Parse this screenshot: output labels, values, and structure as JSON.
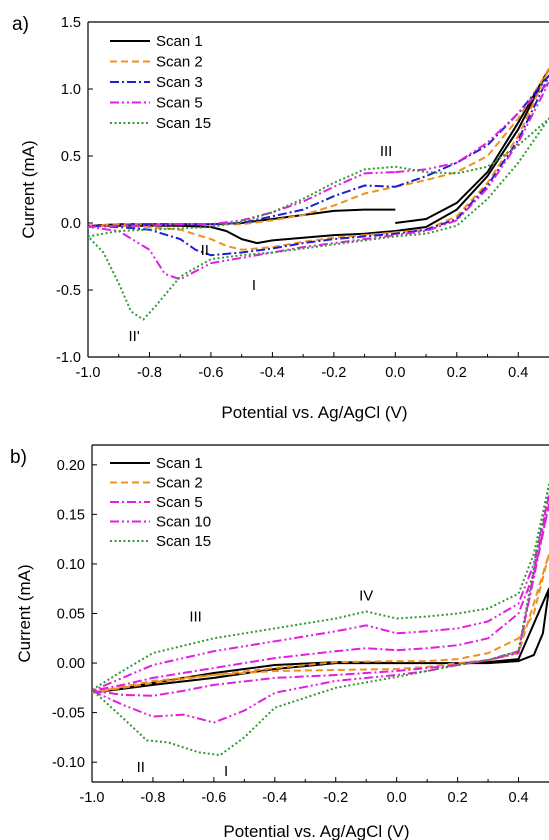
{
  "colors": {
    "scan1": "#000000",
    "scan2": "#f0901e",
    "scan3": "#1e1ed2",
    "scan5": "#e21ee2",
    "scan10": "#e21ee2",
    "scan15": "#2f9a2f"
  },
  "chart_data": [
    {
      "type": "line",
      "panel_label": "a)",
      "xlabel": "Potential vs. Ag/AgCl (V)",
      "ylabel": "Current (mA)",
      "xlim": [
        -1.0,
        0.5
      ],
      "ylim": [
        -1.0,
        1.5
      ],
      "xticks": [
        -1.0,
        -0.8,
        -0.6,
        -0.4,
        -0.2,
        0.0,
        0.2,
        0.4
      ],
      "xtick_labels": [
        "-1.0",
        "-0.8",
        "-0.6",
        "-0.4",
        "-0.2",
        "0.0",
        "0.2",
        "0.4"
      ],
      "yticks": [
        -1.0,
        -0.5,
        0.0,
        0.5,
        1.0,
        1.5
      ],
      "ytick_labels": [
        "-1.0",
        "-0.5",
        "0.0",
        "0.5",
        "1.0",
        "1.5"
      ],
      "grid": false,
      "legend": "top-left",
      "series": [
        {
          "name": "Scan 1",
          "color_key": "scan1",
          "dash": "solid",
          "x": [
            0.0,
            0.1,
            0.2,
            0.3,
            0.4,
            0.5,
            0.4,
            0.3,
            0.2,
            0.1,
            0.0,
            -0.1,
            -0.2,
            -0.3,
            -0.4,
            -0.45,
            -0.5,
            -0.55,
            -0.6,
            -0.7,
            -0.8,
            -0.9,
            -1.0,
            -0.9,
            -0.8,
            -0.7,
            -0.6,
            -0.5,
            -0.4,
            -0.3,
            -0.2,
            -0.1,
            0.0
          ],
          "y": [
            0.0,
            0.03,
            0.15,
            0.38,
            0.75,
            1.15,
            0.7,
            0.35,
            0.1,
            -0.03,
            -0.06,
            -0.08,
            -0.09,
            -0.11,
            -0.13,
            -0.15,
            -0.12,
            -0.06,
            -0.03,
            -0.02,
            -0.02,
            -0.02,
            -0.02,
            -0.01,
            -0.01,
            -0.01,
            -0.01,
            0.0,
            0.03,
            0.06,
            0.09,
            0.1,
            0.1
          ]
        },
        {
          "name": "Scan 2",
          "color_key": "scan2",
          "dash": "dash",
          "x": [
            0.0,
            0.1,
            0.2,
            0.3,
            0.4,
            0.5,
            0.4,
            0.3,
            0.2,
            0.1,
            0.0,
            -0.1,
            -0.2,
            -0.3,
            -0.4,
            -0.5,
            -0.55,
            -0.6,
            -0.7,
            -0.8,
            -0.9,
            -1.0,
            -0.9,
            -0.8,
            -0.7,
            -0.6,
            -0.5,
            -0.4,
            -0.3,
            -0.2,
            -0.1,
            0.0
          ],
          "y": [
            0.27,
            0.32,
            0.38,
            0.5,
            0.78,
            1.15,
            0.65,
            0.3,
            0.05,
            -0.05,
            -0.07,
            -0.09,
            -0.11,
            -0.14,
            -0.18,
            -0.2,
            -0.17,
            -0.12,
            -0.05,
            -0.03,
            -0.02,
            -0.02,
            -0.01,
            -0.01,
            -0.01,
            -0.01,
            -0.01,
            0.02,
            0.06,
            0.13,
            0.22,
            0.27
          ]
        },
        {
          "name": "Scan 3",
          "color_key": "scan3",
          "dash": "dashdot",
          "x": [
            0.0,
            0.1,
            0.2,
            0.3,
            0.4,
            0.5,
            0.4,
            0.3,
            0.2,
            0.1,
            0.0,
            -0.1,
            -0.2,
            -0.3,
            -0.4,
            -0.5,
            -0.6,
            -0.65,
            -0.7,
            -0.8,
            -0.9,
            -1.0,
            -0.9,
            -0.8,
            -0.7,
            -0.6,
            -0.5,
            -0.4,
            -0.3,
            -0.2,
            -0.1,
            0.0
          ],
          "y": [
            0.27,
            0.35,
            0.45,
            0.58,
            0.82,
            1.1,
            0.62,
            0.28,
            0.03,
            -0.05,
            -0.08,
            -0.1,
            -0.12,
            -0.15,
            -0.19,
            -0.22,
            -0.24,
            -0.2,
            -0.12,
            -0.05,
            -0.03,
            -0.02,
            -0.02,
            -0.01,
            -0.01,
            -0.01,
            0.0,
            0.05,
            0.1,
            0.2,
            0.28,
            0.27
          ]
        },
        {
          "name": "Scan 5",
          "color_key": "scan5",
          "dash": "dashdotdot",
          "x": [
            0.0,
            0.1,
            0.2,
            0.3,
            0.4,
            0.5,
            0.4,
            0.3,
            0.2,
            0.1,
            0.0,
            -0.1,
            -0.2,
            -0.3,
            -0.4,
            -0.5,
            -0.6,
            -0.7,
            -0.75,
            -0.8,
            -0.9,
            -1.0,
            -0.9,
            -0.8,
            -0.7,
            -0.6,
            -0.5,
            -0.4,
            -0.3,
            -0.2,
            -0.1,
            0.0
          ],
          "y": [
            0.38,
            0.4,
            0.45,
            0.6,
            0.82,
            1.05,
            0.6,
            0.26,
            0.02,
            -0.06,
            -0.09,
            -0.12,
            -0.15,
            -0.18,
            -0.22,
            -0.26,
            -0.3,
            -0.42,
            -0.38,
            -0.2,
            -0.06,
            -0.03,
            -0.02,
            -0.02,
            -0.01,
            -0.01,
            0.02,
            0.08,
            0.16,
            0.27,
            0.37,
            0.38
          ]
        },
        {
          "name": "Scan 15",
          "color_key": "scan15",
          "dash": "dot",
          "x": [
            0.0,
            0.1,
            0.2,
            0.3,
            0.4,
            0.5,
            0.4,
            0.3,
            0.2,
            0.1,
            0.0,
            -0.1,
            -0.2,
            -0.3,
            -0.4,
            -0.5,
            -0.6,
            -0.7,
            -0.78,
            -0.82,
            -0.86,
            -0.9,
            -0.95,
            -1.0,
            -0.9,
            -0.8,
            -0.7,
            -0.6,
            -0.5,
            -0.4,
            -0.3,
            -0.2,
            -0.1,
            0.0
          ],
          "y": [
            0.42,
            0.38,
            0.37,
            0.42,
            0.58,
            0.78,
            0.45,
            0.18,
            -0.02,
            -0.08,
            -0.1,
            -0.13,
            -0.16,
            -0.19,
            -0.22,
            -0.24,
            -0.27,
            -0.4,
            -0.62,
            -0.72,
            -0.66,
            -0.45,
            -0.22,
            -0.1,
            -0.06,
            -0.05,
            -0.04,
            -0.03,
            0.01,
            0.08,
            0.18,
            0.3,
            0.4,
            0.42
          ]
        }
      ],
      "annotations": [
        {
          "text": "III",
          "x": -0.03,
          "y": 0.5
        },
        {
          "text": "II",
          "x": -0.62,
          "y": -0.24
        },
        {
          "text": "I",
          "x": -0.46,
          "y": -0.5
        },
        {
          "text": "II'",
          "x": -0.85,
          "y": -0.88
        }
      ]
    },
    {
      "type": "line",
      "panel_label": "b)",
      "xlabel": "Potential vs. Ag/AgCl (V)",
      "ylabel": "Current (mA)",
      "xlim": [
        -1.0,
        0.5
      ],
      "ylim": [
        -0.12,
        0.22
      ],
      "xticks": [
        -1.0,
        -0.8,
        -0.6,
        -0.4,
        -0.2,
        0.0,
        0.2,
        0.4
      ],
      "xtick_labels": [
        "-1.0",
        "-0.8",
        "-0.6",
        "-0.4",
        "-0.2",
        "0.0",
        "0.2",
        "0.4"
      ],
      "yticks": [
        -0.1,
        -0.05,
        0.0,
        0.05,
        0.1,
        0.15,
        0.2
      ],
      "ytick_labels": [
        "-0.10",
        "-0.05",
        "0.00",
        "0.05",
        "0.10",
        "0.15",
        "0.20"
      ],
      "grid": false,
      "legend": "top-left",
      "series": [
        {
          "name": "Scan 1",
          "color_key": "scan1",
          "dash": "solid",
          "x": [
            0.0,
            0.1,
            0.2,
            0.3,
            0.4,
            0.45,
            0.48,
            0.5,
            0.4,
            0.3,
            0.2,
            0.1,
            0.0,
            -0.2,
            -0.4,
            -0.6,
            -0.8,
            -1.0,
            -0.8,
            -0.6,
            -0.4,
            -0.2,
            0.0
          ],
          "y": [
            0.0,
            0.0,
            0.0,
            0.0,
            0.002,
            0.008,
            0.03,
            0.075,
            0.004,
            0.001,
            0.0,
            0.0,
            0.0,
            0.001,
            -0.002,
            -0.01,
            -0.02,
            -0.03,
            -0.022,
            -0.015,
            -0.006,
            0.0,
            0.0
          ]
        },
        {
          "name": "Scan 2",
          "color_key": "scan2",
          "dash": "dash",
          "x": [
            0.0,
            0.1,
            0.2,
            0.3,
            0.4,
            0.45,
            0.5,
            0.4,
            0.3,
            0.2,
            0.1,
            0.0,
            -0.2,
            -0.4,
            -0.6,
            -0.8,
            -1.0,
            -0.8,
            -0.6,
            -0.4,
            -0.2,
            0.0
          ],
          "y": [
            0.002,
            0.002,
            0.004,
            0.01,
            0.025,
            0.05,
            0.11,
            0.01,
            0.003,
            0.0,
            -0.004,
            -0.006,
            -0.007,
            -0.008,
            -0.012,
            -0.018,
            -0.03,
            -0.02,
            -0.012,
            -0.005,
            0.001,
            0.002
          ]
        },
        {
          "name": "Scan 5",
          "color_key": "scan5",
          "dash": "dashdot",
          "x": [
            0.0,
            0.1,
            0.2,
            0.3,
            0.4,
            0.45,
            0.5,
            0.4,
            0.3,
            0.2,
            0.1,
            0.0,
            -0.2,
            -0.4,
            -0.6,
            -0.7,
            -0.8,
            -0.9,
            -1.0,
            -0.9,
            -0.8,
            -0.6,
            -0.4,
            -0.2,
            -0.1,
            0.0
          ],
          "y": [
            0.013,
            0.015,
            0.018,
            0.025,
            0.05,
            0.09,
            0.16,
            0.012,
            0.003,
            -0.002,
            -0.005,
            -0.008,
            -0.012,
            -0.015,
            -0.022,
            -0.028,
            -0.033,
            -0.032,
            -0.028,
            -0.022,
            -0.015,
            -0.005,
            0.005,
            0.012,
            0.015,
            0.013
          ]
        },
        {
          "name": "Scan 10",
          "color_key": "scan10",
          "dash": "dashdotdot",
          "x": [
            0.0,
            0.1,
            0.2,
            0.3,
            0.4,
            0.45,
            0.5,
            0.4,
            0.3,
            0.2,
            0.1,
            0.0,
            -0.2,
            -0.4,
            -0.5,
            -0.6,
            -0.7,
            -0.8,
            -0.9,
            -1.0,
            -0.9,
            -0.8,
            -0.6,
            -0.4,
            -0.2,
            -0.1,
            0.0
          ],
          "y": [
            0.03,
            0.032,
            0.035,
            0.042,
            0.06,
            0.1,
            0.17,
            0.01,
            0.003,
            -0.002,
            -0.008,
            -0.012,
            -0.018,
            -0.03,
            -0.048,
            -0.06,
            -0.052,
            -0.054,
            -0.042,
            -0.028,
            -0.015,
            -0.002,
            0.012,
            0.022,
            0.032,
            0.038,
            0.03
          ]
        },
        {
          "name": "Scan 15",
          "color_key": "scan15",
          "dash": "dot",
          "x": [
            0.0,
            0.1,
            0.2,
            0.3,
            0.4,
            0.45,
            0.5,
            0.4,
            0.3,
            0.2,
            0.1,
            0.0,
            -0.2,
            -0.4,
            -0.5,
            -0.58,
            -0.65,
            -0.75,
            -0.82,
            -0.9,
            -1.0,
            -0.9,
            -0.8,
            -0.6,
            -0.4,
            -0.2,
            -0.1,
            0.0
          ],
          "y": [
            0.045,
            0.047,
            0.05,
            0.055,
            0.07,
            0.11,
            0.18,
            0.012,
            0.003,
            -0.002,
            -0.008,
            -0.014,
            -0.025,
            -0.045,
            -0.075,
            -0.093,
            -0.09,
            -0.08,
            -0.078,
            -0.055,
            -0.027,
            -0.008,
            0.01,
            0.025,
            0.035,
            0.045,
            0.052,
            0.045
          ]
        }
      ],
      "annotations": [
        {
          "text": "IV",
          "x": -0.1,
          "y": 0.063
        },
        {
          "text": "III",
          "x": -0.66,
          "y": 0.042
        },
        {
          "text": "II",
          "x": -0.84,
          "y": -0.11
        },
        {
          "text": "I",
          "x": -0.56,
          "y": -0.114
        }
      ]
    }
  ]
}
